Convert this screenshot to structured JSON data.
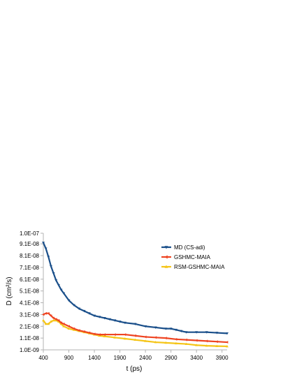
{
  "chart_data": {
    "type": "line",
    "title": "",
    "xlabel": "t (ps)",
    "ylabel": "D (cm²/s)",
    "xlim": [
      400,
      4000
    ],
    "ylim": [
      1e-09,
      1e-07
    ],
    "xticks": [
      400,
      900,
      1400,
      1900,
      2400,
      2900,
      3400,
      3900
    ],
    "xtick_labels": [
      "400",
      "900",
      "1400",
      "1900",
      "2400",
      "2900",
      "3400",
      "3900"
    ],
    "yticks": [
      1e-09,
      1.1e-08,
      2.1e-08,
      3.1e-08,
      4.1e-08,
      5.1e-08,
      6.1e-08,
      7.1e-08,
      8.1e-08,
      9.1e-08,
      1e-07
    ],
    "ytick_labels": [
      "1.0E-09",
      "1.1E-08",
      "2.1E-08",
      "3.1E-08",
      "4.1E-08",
      "5.1E-08",
      "6.1E-08",
      "7.1E-08",
      "8.1E-08",
      "9.1E-08",
      "1.0E-07"
    ],
    "grid": false,
    "legend_position": "top-right",
    "series": [
      {
        "name": "MD (CS-adi)",
        "color": "#1a4f8a",
        "marker": "triangle-down",
        "x": [
          400,
          450,
          500,
          550,
          600,
          650,
          700,
          750,
          800,
          900,
          1000,
          1100,
          1200,
          1300,
          1400,
          1500,
          1600,
          1700,
          1800,
          1900,
          2000,
          2200,
          2400,
          2600,
          2800,
          2900,
          3000,
          3100,
          3200,
          3400,
          3600,
          3800,
          4000
        ],
        "y": [
          9.2e-08,
          8.7e-08,
          8e-08,
          7.2e-08,
          6.6e-08,
          6e-08,
          5.6e-08,
          5.2e-08,
          4.9e-08,
          4.3e-08,
          3.9e-08,
          3.6e-08,
          3.4e-08,
          3.2e-08,
          3e-08,
          2.9e-08,
          2.8e-08,
          2.7e-08,
          2.6e-08,
          2.5e-08,
          2.4e-08,
          2.3e-08,
          2.1e-08,
          2e-08,
          1.9e-08,
          1.9e-08,
          1.8e-08,
          1.7e-08,
          1.6e-08,
          1.6e-08,
          1.6e-08,
          1.55e-08,
          1.5e-08
        ]
      },
      {
        "name": "GSHMC-MAIA",
        "color": "#ee4422",
        "marker": "triangle-left",
        "x": [
          400,
          450,
          500,
          550,
          600,
          650,
          700,
          750,
          800,
          900,
          1000,
          1100,
          1200,
          1300,
          1400,
          1500,
          1600,
          1800,
          2000,
          2200,
          2400,
          2600,
          2800,
          3000,
          3200,
          3400,
          3600,
          3800,
          4000
        ],
        "y": [
          3.1e-08,
          3.2e-08,
          3.2e-08,
          3e-08,
          2.8e-08,
          2.7e-08,
          2.6e-08,
          2.4e-08,
          2.3e-08,
          2.1e-08,
          1.9e-08,
          1.75e-08,
          1.65e-08,
          1.55e-08,
          1.45e-08,
          1.4e-08,
          1.4e-08,
          1.4e-08,
          1.4e-08,
          1.3e-08,
          1.2e-08,
          1.15e-08,
          1.1e-08,
          1e-08,
          9.5e-09,
          9e-09,
          8.5e-09,
          8e-09,
          7.5e-09
        ]
      },
      {
        "name": "RSM-GSHMC-MAIA",
        "color": "#f5c518",
        "marker": "triangle-up",
        "x": [
          400,
          450,
          500,
          550,
          600,
          650,
          700,
          750,
          800,
          900,
          1000,
          1100,
          1200,
          1300,
          1400,
          1500,
          1600,
          1800,
          2000,
          2200,
          2400,
          2600,
          2800,
          3000,
          3200,
          3400,
          3600,
          3800,
          4000
        ],
        "y": [
          2.6e-08,
          2.3e-08,
          2.3e-08,
          2.5e-08,
          2.6e-08,
          2.6e-08,
          2.5e-08,
          2.3e-08,
          2.1e-08,
          1.9e-08,
          1.8e-08,
          1.7e-08,
          1.6e-08,
          1.5e-08,
          1.4e-08,
          1.3e-08,
          1.25e-08,
          1.15e-08,
          1.05e-08,
          9.5e-09,
          8.5e-09,
          7.5e-09,
          7e-09,
          6.5e-09,
          6e-09,
          5e-09,
          4.5e-09,
          4.2e-09,
          4e-09
        ]
      }
    ]
  }
}
